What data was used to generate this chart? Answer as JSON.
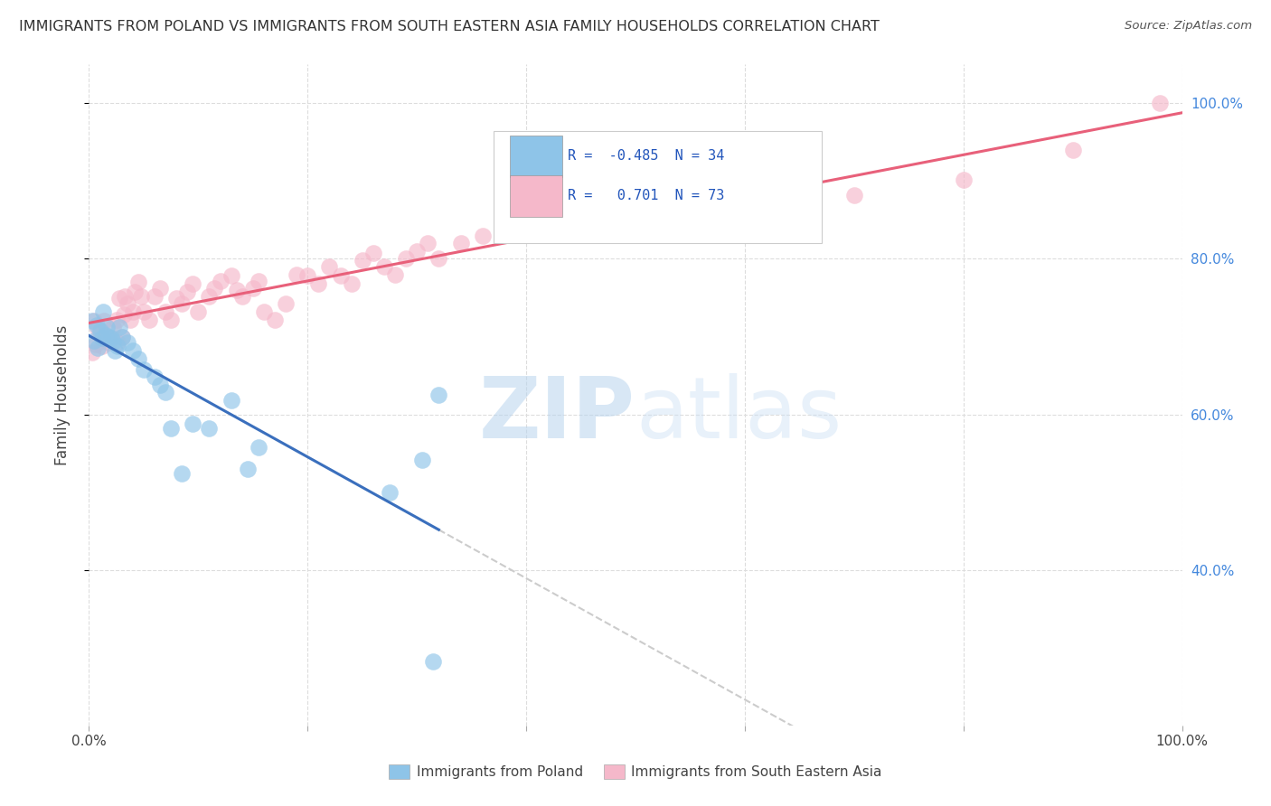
{
  "title": "IMMIGRANTS FROM POLAND VS IMMIGRANTS FROM SOUTH EASTERN ASIA FAMILY HOUSEHOLDS CORRELATION CHART",
  "source": "Source: ZipAtlas.com",
  "ylabel": "Family Households",
  "legend_label1": "Immigrants from Poland",
  "legend_label2": "Immigrants from South Eastern Asia",
  "R1": -0.485,
  "N1": 34,
  "R2": 0.701,
  "N2": 73,
  "color_poland": "#8ec4e8",
  "color_sea": "#f5b8ca",
  "trendline_poland": "#3a6fbd",
  "trendline_sea": "#e8607a",
  "trendline_dash": "#cccccc",
  "xlim": [
    0.0,
    1.0
  ],
  "ylim": [
    0.2,
    1.05
  ],
  "grid_color": "#dddddd",
  "bg_color": "#ffffff",
  "right_tick_color": "#4488dd",
  "poland_x": [
    0.003,
    0.005,
    0.007,
    0.008,
    0.01,
    0.012,
    0.013,
    0.015,
    0.016,
    0.018,
    0.02,
    0.022,
    0.024,
    0.026,
    0.028,
    0.03,
    0.035,
    0.04,
    0.045,
    0.05,
    0.06,
    0.065,
    0.07,
    0.075,
    0.085,
    0.095,
    0.11,
    0.13,
    0.145,
    0.155,
    0.275,
    0.305,
    0.315,
    0.32
  ],
  "poland_y": [
    0.72,
    0.695,
    0.715,
    0.685,
    0.708,
    0.698,
    0.732,
    0.702,
    0.712,
    0.7,
    0.698,
    0.694,
    0.682,
    0.688,
    0.712,
    0.7,
    0.692,
    0.682,
    0.672,
    0.658,
    0.648,
    0.638,
    0.628,
    0.582,
    0.524,
    0.588,
    0.582,
    0.618,
    0.53,
    0.558,
    0.5,
    0.542,
    0.282,
    0.625
  ],
  "sea_x": [
    0.003,
    0.005,
    0.006,
    0.008,
    0.01,
    0.012,
    0.014,
    0.015,
    0.018,
    0.02,
    0.022,
    0.025,
    0.026,
    0.028,
    0.03,
    0.032,
    0.033,
    0.035,
    0.038,
    0.04,
    0.042,
    0.045,
    0.048,
    0.05,
    0.055,
    0.06,
    0.065,
    0.07,
    0.075,
    0.08,
    0.085,
    0.09,
    0.095,
    0.1,
    0.11,
    0.115,
    0.12,
    0.13,
    0.135,
    0.14,
    0.15,
    0.155,
    0.16,
    0.17,
    0.18,
    0.19,
    0.2,
    0.21,
    0.22,
    0.23,
    0.24,
    0.25,
    0.26,
    0.27,
    0.28,
    0.29,
    0.3,
    0.31,
    0.32,
    0.34,
    0.36,
    0.38,
    0.42,
    0.45,
    0.5,
    0.54,
    0.58,
    0.62,
    0.65,
    0.7,
    0.8,
    0.9,
    0.98
  ],
  "sea_y": [
    0.68,
    0.72,
    0.69,
    0.71,
    0.705,
    0.688,
    0.72,
    0.7,
    0.692,
    0.698,
    0.712,
    0.722,
    0.692,
    0.75,
    0.7,
    0.728,
    0.752,
    0.742,
    0.722,
    0.732,
    0.758,
    0.77,
    0.752,
    0.732,
    0.722,
    0.752,
    0.762,
    0.732,
    0.722,
    0.75,
    0.742,
    0.758,
    0.768,
    0.732,
    0.752,
    0.762,
    0.772,
    0.778,
    0.76,
    0.752,
    0.762,
    0.772,
    0.732,
    0.722,
    0.742,
    0.78,
    0.778,
    0.768,
    0.79,
    0.778,
    0.768,
    0.798,
    0.808,
    0.79,
    0.78,
    0.8,
    0.81,
    0.82,
    0.8,
    0.82,
    0.83,
    0.842,
    0.832,
    0.858,
    0.87,
    0.862,
    0.882,
    0.892,
    0.872,
    0.882,
    0.902,
    0.94,
    1.0
  ]
}
